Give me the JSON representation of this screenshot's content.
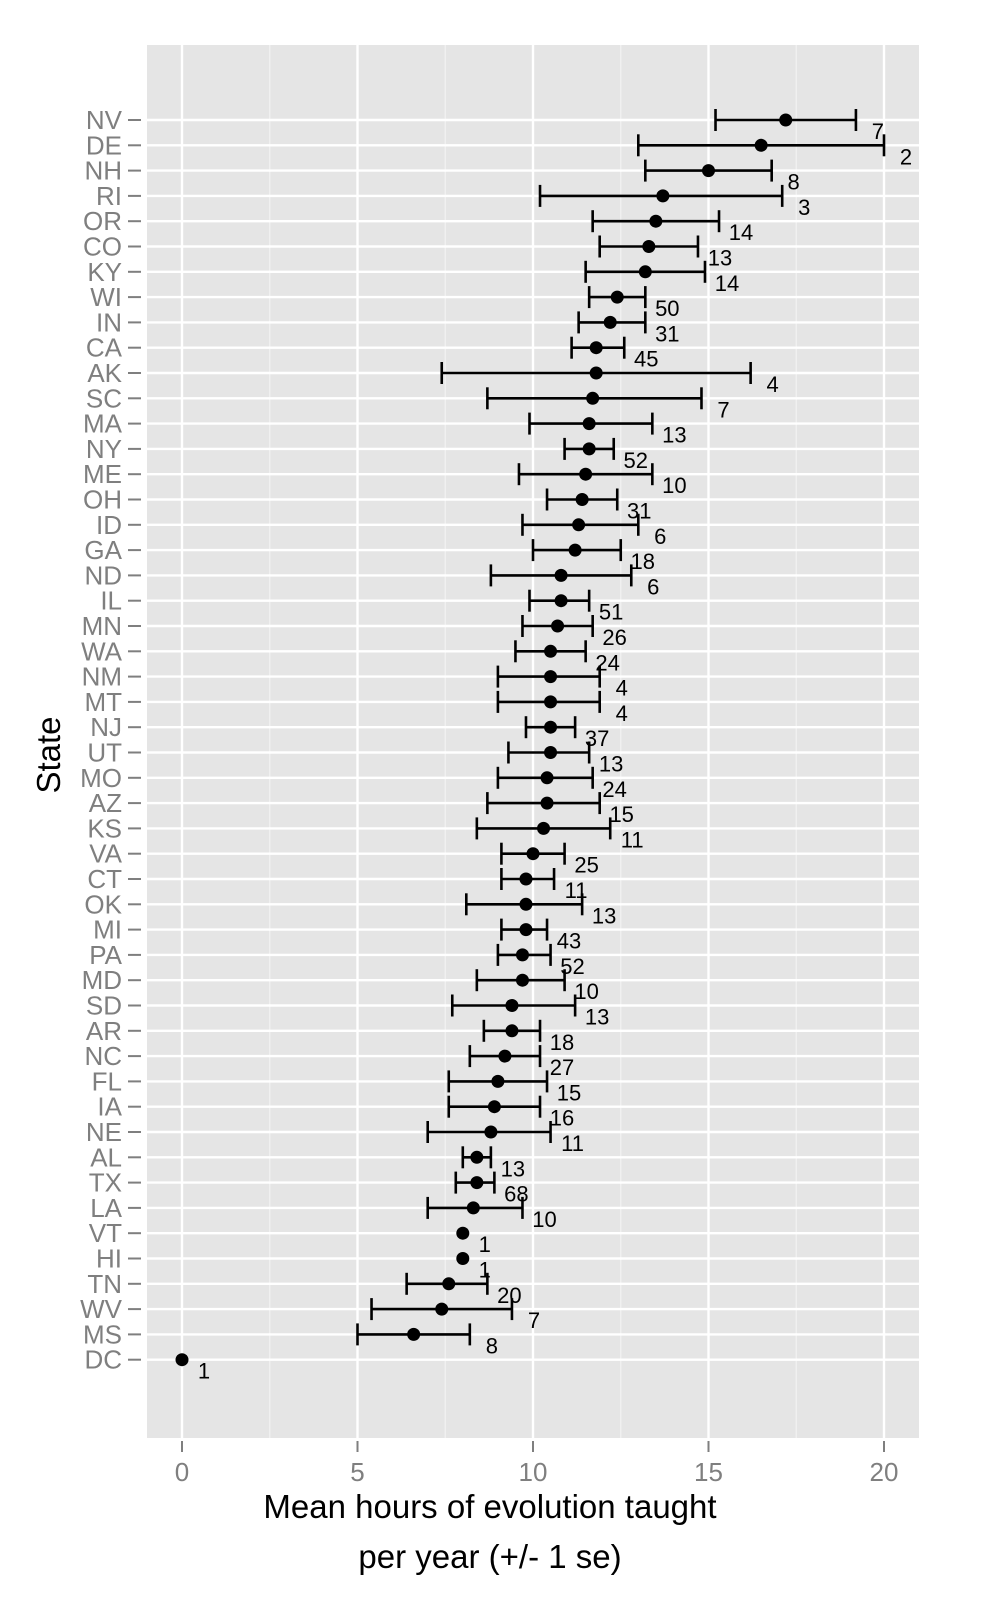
{
  "chart_data": {
    "type": "scatter",
    "subtype": "dot-plot-with-error-bars",
    "title": "",
    "xlabel_lines": [
      "Mean hours of evolution taught",
      "per year (+/- 1 se)"
    ],
    "ylabel": "State",
    "xlim": [
      -1,
      21
    ],
    "x_ticks": [
      0,
      5,
      10,
      15,
      20
    ],
    "grid": true,
    "background": "#e5e5e5",
    "gridline_color": "#ffffff",
    "point_color": "#000000",
    "series": [
      {
        "points": [
          {
            "state": "NV",
            "mean": 17.2,
            "lo": 15.2,
            "hi": 19.2,
            "n": "7"
          },
          {
            "state": "DE",
            "mean": 16.5,
            "lo": 13.0,
            "hi": 20.0,
            "n": "2"
          },
          {
            "state": "NH",
            "mean": 15.0,
            "lo": 13.2,
            "hi": 16.8,
            "n": "8"
          },
          {
            "state": "RI",
            "mean": 13.7,
            "lo": 10.2,
            "hi": 17.1,
            "n": "3"
          },
          {
            "state": "OR",
            "mean": 13.5,
            "lo": 11.7,
            "hi": 15.3,
            "n": "14"
          },
          {
            "state": "CO",
            "mean": 13.3,
            "lo": 11.9,
            "hi": 14.7,
            "n": "13"
          },
          {
            "state": "KY",
            "mean": 13.2,
            "lo": 11.5,
            "hi": 14.9,
            "n": "14"
          },
          {
            "state": "WI",
            "mean": 12.4,
            "lo": 11.6,
            "hi": 13.2,
            "n": "50"
          },
          {
            "state": "IN",
            "mean": 12.2,
            "lo": 11.3,
            "hi": 13.2,
            "n": "31"
          },
          {
            "state": "CA",
            "mean": 11.8,
            "lo": 11.1,
            "hi": 12.6,
            "n": "45"
          },
          {
            "state": "AK",
            "mean": 11.8,
            "lo": 7.4,
            "hi": 16.2,
            "n": "4"
          },
          {
            "state": "SC",
            "mean": 11.7,
            "lo": 8.7,
            "hi": 14.8,
            "n": "7"
          },
          {
            "state": "MA",
            "mean": 11.6,
            "lo": 9.9,
            "hi": 13.4,
            "n": "13"
          },
          {
            "state": "NY",
            "mean": 11.6,
            "lo": 10.9,
            "hi": 12.3,
            "n": "52"
          },
          {
            "state": "ME",
            "mean": 11.5,
            "lo": 9.6,
            "hi": 13.4,
            "n": "10"
          },
          {
            "state": "OH",
            "mean": 11.4,
            "lo": 10.4,
            "hi": 12.4,
            "n": "31"
          },
          {
            "state": "ID",
            "mean": 11.3,
            "lo": 9.7,
            "hi": 13.0,
            "n": "6"
          },
          {
            "state": "GA",
            "mean": 11.2,
            "lo": 10.0,
            "hi": 12.5,
            "n": "18"
          },
          {
            "state": "ND",
            "mean": 10.8,
            "lo": 8.8,
            "hi": 12.8,
            "n": "6"
          },
          {
            "state": "IL",
            "mean": 10.8,
            "lo": 9.9,
            "hi": 11.6,
            "n": "51"
          },
          {
            "state": "MN",
            "mean": 10.7,
            "lo": 9.7,
            "hi": 11.7,
            "n": "26"
          },
          {
            "state": "WA",
            "mean": 10.5,
            "lo": 9.5,
            "hi": 11.5,
            "n": "24"
          },
          {
            "state": "NM",
            "mean": 10.5,
            "lo": 9.0,
            "hi": 11.9,
            "n": "4"
          },
          {
            "state": "MT",
            "mean": 10.5,
            "lo": 9.0,
            "hi": 11.9,
            "n": "4"
          },
          {
            "state": "NJ",
            "mean": 10.5,
            "lo": 9.8,
            "hi": 11.2,
            "n": "37"
          },
          {
            "state": "UT",
            "mean": 10.5,
            "lo": 9.3,
            "hi": 11.6,
            "n": "13"
          },
          {
            "state": "MO",
            "mean": 10.4,
            "lo": 9.0,
            "hi": 11.7,
            "n": "24"
          },
          {
            "state": "AZ",
            "mean": 10.4,
            "lo": 8.7,
            "hi": 11.9,
            "n": "15"
          },
          {
            "state": "KS",
            "mean": 10.3,
            "lo": 8.4,
            "hi": 12.2,
            "n": "11"
          },
          {
            "state": "VA",
            "mean": 10.0,
            "lo": 9.1,
            "hi": 10.9,
            "n": "25"
          },
          {
            "state": "CT",
            "mean": 9.8,
            "lo": 9.1,
            "hi": 10.6,
            "n": "11"
          },
          {
            "state": "OK",
            "mean": 9.8,
            "lo": 8.1,
            "hi": 11.4,
            "n": "13"
          },
          {
            "state": "MI",
            "mean": 9.8,
            "lo": 9.1,
            "hi": 10.4,
            "n": "43"
          },
          {
            "state": "PA",
            "mean": 9.7,
            "lo": 9.0,
            "hi": 10.5,
            "n": "52"
          },
          {
            "state": "MD",
            "mean": 9.7,
            "lo": 8.4,
            "hi": 10.9,
            "n": "10"
          },
          {
            "state": "SD",
            "mean": 9.4,
            "lo": 7.7,
            "hi": 11.2,
            "n": "13"
          },
          {
            "state": "AR",
            "mean": 9.4,
            "lo": 8.6,
            "hi": 10.2,
            "n": "18"
          },
          {
            "state": "NC",
            "mean": 9.2,
            "lo": 8.2,
            "hi": 10.2,
            "n": "27"
          },
          {
            "state": "FL",
            "mean": 9.0,
            "lo": 7.6,
            "hi": 10.4,
            "n": "15"
          },
          {
            "state": "IA",
            "mean": 8.9,
            "lo": 7.6,
            "hi": 10.2,
            "n": "16"
          },
          {
            "state": "NE",
            "mean": 8.8,
            "lo": 7.0,
            "hi": 10.5,
            "n": "11"
          },
          {
            "state": "AL",
            "mean": 8.4,
            "lo": 8.0,
            "hi": 8.8,
            "n": "13"
          },
          {
            "state": "TX",
            "mean": 8.4,
            "lo": 7.8,
            "hi": 8.9,
            "n": "68"
          },
          {
            "state": "LA",
            "mean": 8.3,
            "lo": 7.0,
            "hi": 9.7,
            "n": "10"
          },
          {
            "state": "VT",
            "mean": 8.0,
            "lo": 8.0,
            "hi": 8.0,
            "n": "1"
          },
          {
            "state": "HI",
            "mean": 8.0,
            "lo": 8.0,
            "hi": 8.0,
            "n": "1"
          },
          {
            "state": "TN",
            "mean": 7.6,
            "lo": 6.4,
            "hi": 8.7,
            "n": "20"
          },
          {
            "state": "WV",
            "mean": 7.4,
            "lo": 5.4,
            "hi": 9.4,
            "n": "7"
          },
          {
            "state": "MS",
            "mean": 6.6,
            "lo": 5.0,
            "hi": 8.2,
            "n": "8"
          },
          {
            "state": "DC",
            "mean": 0.0,
            "lo": 0.0,
            "hi": 0.0,
            "n": "1"
          }
        ]
      }
    ]
  }
}
